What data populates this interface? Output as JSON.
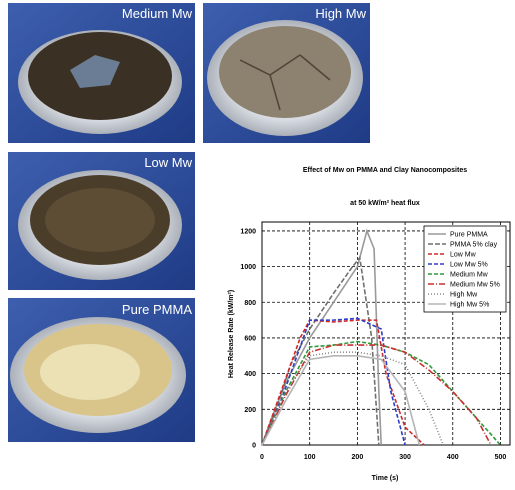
{
  "photos": [
    {
      "label": "Medium Mw"
    },
    {
      "label": "High Mw"
    },
    {
      "label": "Low Mw"
    },
    {
      "label": "Pure PMMA"
    }
  ],
  "chart_data": {
    "type": "line",
    "title": "Effect of Mw on PMMA and Clay Nanocomposites",
    "subtitle": "at 50 kW/m² heat flux",
    "x_label": "Time (s)",
    "y_label": "Heat Release Rate (kW/m²)",
    "xlim": [
      0,
      520
    ],
    "xticks": [
      0,
      100,
      200,
      300,
      400,
      500
    ],
    "ylim": [
      0,
      1250
    ],
    "yticks": [
      0,
      200,
      400,
      600,
      800,
      1000,
      1200
    ],
    "grid": true,
    "legend": "upper right",
    "series": [
      {
        "name": "Pure PMMA",
        "color": "#9a9a9a",
        "dash": "none",
        "x": [
          0,
          20,
          50,
          100,
          150,
          200,
          220,
          235,
          245,
          250
        ],
        "values": [
          0,
          150,
          350,
          600,
          800,
          1000,
          1200,
          1100,
          300,
          0
        ]
      },
      {
        "name": "PMMA 5% clay",
        "color": "#6f6f6f",
        "dash": "5 2",
        "x": [
          0,
          30,
          60,
          100,
          150,
          190,
          205,
          230,
          245
        ],
        "values": [
          0,
          200,
          450,
          650,
          850,
          1000,
          1050,
          600,
          0
        ]
      },
      {
        "name": "Low Mw",
        "color": "#d02828",
        "dash": "4 2",
        "x": [
          0,
          40,
          80,
          100,
          150,
          200,
          240,
          260,
          300,
          340
        ],
        "values": [
          0,
          300,
          600,
          700,
          690,
          700,
          700,
          400,
          100,
          0
        ]
      },
      {
        "name": "Low Mw 5%",
        "color": "#2a3ccc",
        "dash": "4 2",
        "x": [
          0,
          40,
          80,
          100,
          150,
          200,
          250,
          270,
          300
        ],
        "values": [
          0,
          250,
          550,
          700,
          700,
          710,
          650,
          300,
          0
        ]
      },
      {
        "name": "Medium Mw",
        "color": "#2e9a3a",
        "dash": "4 2",
        "x": [
          0,
          50,
          100,
          150,
          200,
          250,
          300,
          350,
          400,
          450,
          500
        ],
        "values": [
          0,
          300,
          550,
          560,
          580,
          560,
          520,
          450,
          300,
          150,
          0
        ]
      },
      {
        "name": "Medium Mw 5%",
        "color": "#c83030",
        "dash": "6 2 1 2",
        "x": [
          0,
          50,
          100,
          150,
          200,
          250,
          300,
          350,
          400,
          450,
          480
        ],
        "values": [
          0,
          280,
          520,
          560,
          560,
          560,
          520,
          420,
          300,
          150,
          0
        ]
      },
      {
        "name": "High Mw",
        "color": "#888888",
        "dash": "1 2",
        "x": [
          0,
          50,
          100,
          150,
          200,
          250,
          300,
          350,
          380
        ],
        "values": [
          0,
          300,
          500,
          520,
          520,
          500,
          450,
          200,
          0
        ]
      },
      {
        "name": "High Mw 5%",
        "color": "#b5b5b5",
        "dash": "none",
        "x": [
          0,
          50,
          100,
          150,
          200,
          250,
          300,
          330
        ],
        "values": [
          0,
          250,
          480,
          500,
          500,
          480,
          300,
          0
        ]
      }
    ]
  }
}
